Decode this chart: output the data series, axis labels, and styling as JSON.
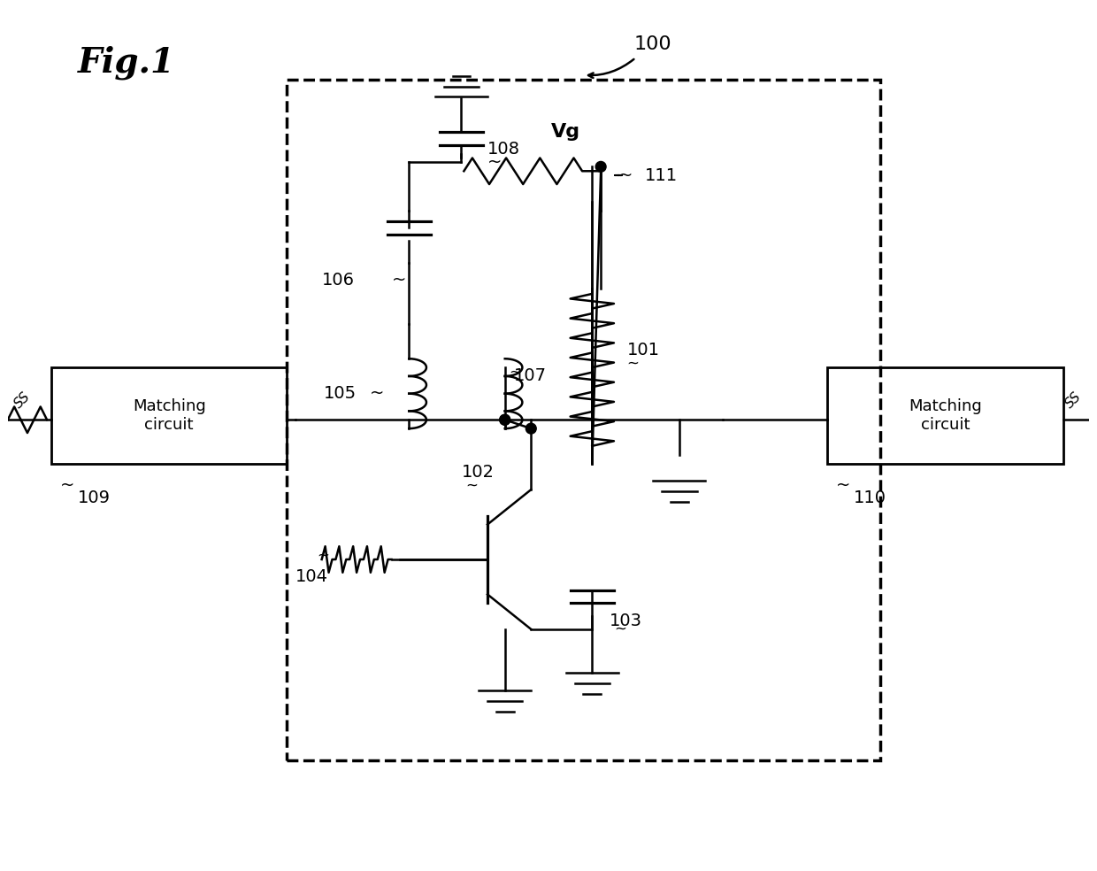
{
  "title": "Fig.1",
  "background_color": "#ffffff",
  "fig_width": 12.4,
  "fig_height": 9.84,
  "labels": {
    "fig_label": "Fig.1",
    "n100": "100",
    "n101": "101",
    "n102": "102",
    "n103": "103",
    "n104": "104",
    "n105": "105",
    "n106": "106",
    "n107": "107",
    "n108": "108",
    "n109": "109",
    "n110": "110",
    "n111": "111",
    "vg": "Vg",
    "matching1": "Matching\ncircuit",
    "matching2": "Matching\ncircuit"
  }
}
